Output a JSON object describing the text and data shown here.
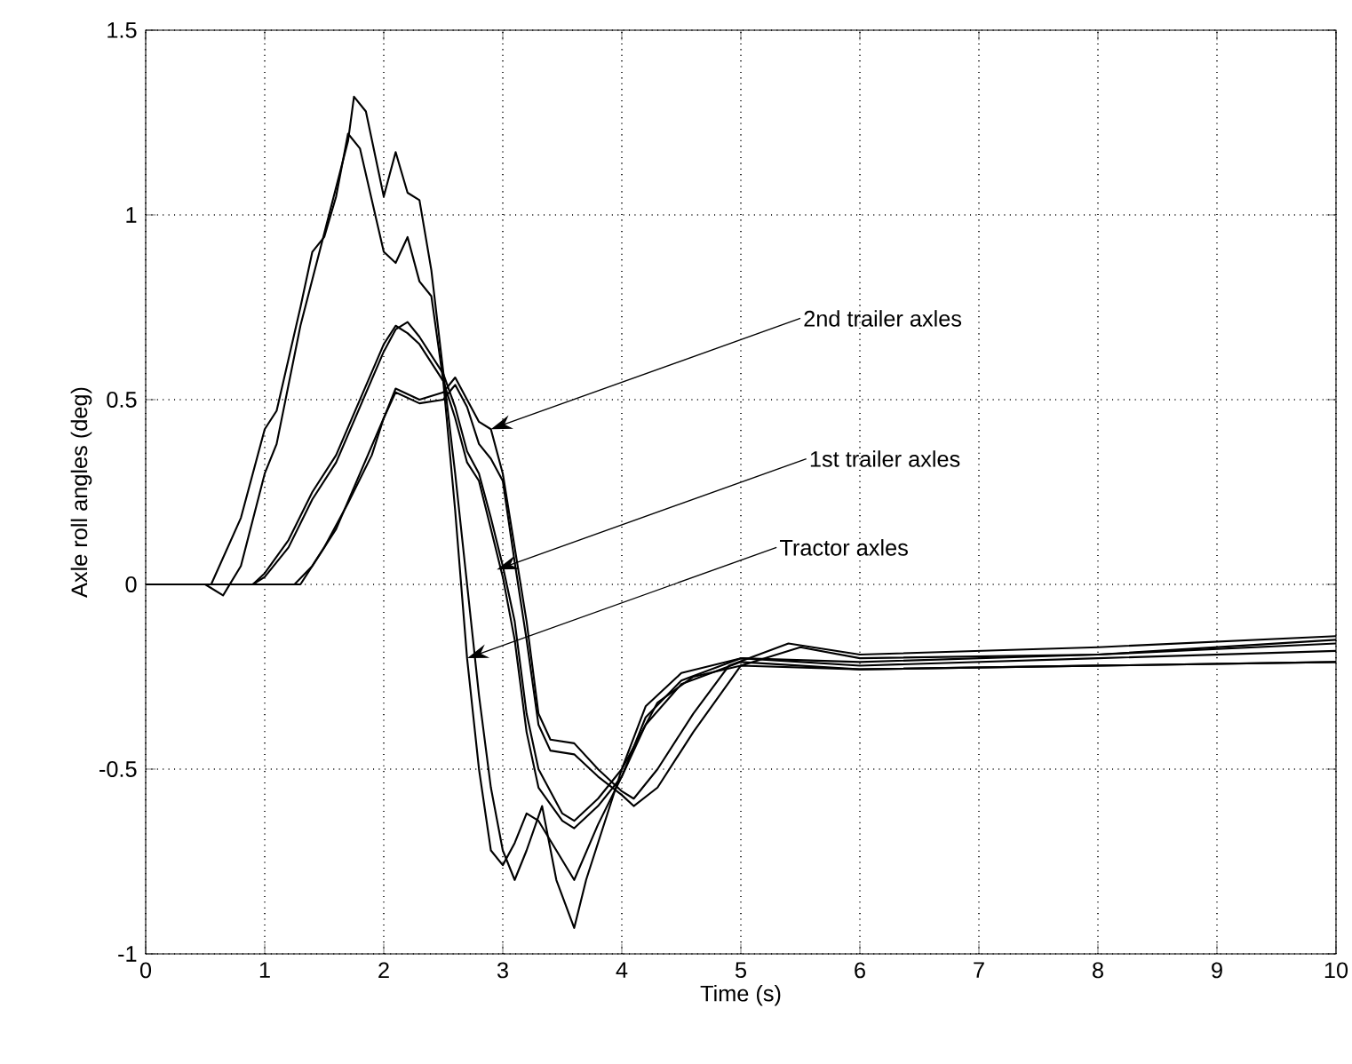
{
  "chart_data": {
    "type": "line",
    "xlabel": "Time (s)",
    "ylabel": "Axle roll angles (deg)",
    "xlim": [
      0,
      10
    ],
    "ylim": [
      -1,
      1.5
    ],
    "xticks": [
      0,
      1,
      2,
      3,
      4,
      5,
      6,
      7,
      8,
      9,
      10
    ],
    "yticks": [
      -1,
      -0.5,
      0,
      0.5,
      1,
      1.5
    ],
    "grid": true,
    "marker": "none",
    "line_style": "solid",
    "series": [
      {
        "color": "#000000",
        "x": [
          0,
          0.55,
          0.8,
          1.0,
          1.1,
          1.3,
          1.4,
          1.5,
          1.6,
          1.7,
          1.8,
          2.0,
          2.1,
          2.2,
          2.3,
          2.4,
          2.5,
          2.6,
          2.7,
          2.8,
          2.9,
          3.0,
          3.1,
          3.2,
          3.3,
          3.45,
          3.6,
          3.8,
          4.0,
          4.2,
          4.5,
          5.0,
          6.0,
          8.0,
          10.0
        ],
        "values": [
          0,
          0,
          0.18,
          0.42,
          0.47,
          0.75,
          0.9,
          0.94,
          1.05,
          1.22,
          1.18,
          0.9,
          0.87,
          0.94,
          0.82,
          0.78,
          0.55,
          0.2,
          -0.2,
          -0.5,
          -0.72,
          -0.76,
          -0.7,
          -0.62,
          -0.64,
          -0.72,
          -0.8,
          -0.65,
          -0.52,
          -0.38,
          -0.27,
          -0.21,
          -0.23,
          -0.22,
          -0.21
        ]
      },
      {
        "color": "#000000",
        "x": [
          0,
          0.5,
          0.65,
          0.8,
          1.0,
          1.1,
          1.3,
          1.5,
          1.7,
          1.75,
          1.85,
          2.0,
          2.1,
          2.2,
          2.3,
          2.4,
          2.6,
          2.8,
          2.9,
          3.0,
          3.1,
          3.2,
          3.33,
          3.45,
          3.6,
          3.7,
          3.85,
          4.0,
          4.3,
          4.6,
          5.0,
          6.0,
          8.0,
          10.0
        ],
        "values": [
          0,
          0,
          -0.03,
          0.05,
          0.3,
          0.38,
          0.7,
          0.95,
          1.2,
          1.32,
          1.28,
          1.05,
          1.17,
          1.06,
          1.04,
          0.85,
          0.3,
          -0.3,
          -0.55,
          -0.72,
          -0.8,
          -0.72,
          -0.6,
          -0.8,
          -0.93,
          -0.8,
          -0.65,
          -0.5,
          -0.32,
          -0.25,
          -0.22,
          -0.23,
          -0.22,
          -0.21
        ]
      },
      {
        "color": "#000000",
        "x": [
          0,
          0.9,
          1.0,
          1.2,
          1.4,
          1.6,
          1.8,
          2.0,
          2.1,
          2.2,
          2.3,
          2.5,
          2.6,
          2.7,
          2.8,
          2.9,
          3.0,
          3.1,
          3.2,
          3.3,
          3.5,
          3.6,
          3.8,
          4.0,
          4.2,
          4.5,
          5.0,
          6.0,
          8.0,
          10.0
        ],
        "values": [
          0,
          0,
          0.03,
          0.12,
          0.25,
          0.35,
          0.5,
          0.65,
          0.7,
          0.68,
          0.65,
          0.55,
          0.45,
          0.33,
          0.28,
          0.15,
          0.02,
          -0.15,
          -0.4,
          -0.55,
          -0.64,
          -0.66,
          -0.6,
          -0.52,
          -0.36,
          -0.26,
          -0.2,
          -0.22,
          -0.2,
          -0.18
        ]
      },
      {
        "color": "#000000",
        "x": [
          0,
          0.9,
          1.0,
          1.2,
          1.4,
          1.6,
          1.8,
          2.0,
          2.1,
          2.2,
          2.3,
          2.5,
          2.6,
          2.7,
          2.8,
          2.9,
          3.0,
          3.1,
          3.2,
          3.3,
          3.5,
          3.6,
          3.8,
          4.0,
          4.2,
          4.5,
          5.0,
          6.0,
          8.0,
          10.0
        ],
        "values": [
          0,
          0,
          0.02,
          0.1,
          0.23,
          0.33,
          0.48,
          0.63,
          0.69,
          0.71,
          0.67,
          0.57,
          0.48,
          0.36,
          0.3,
          0.18,
          0.05,
          -0.1,
          -0.35,
          -0.5,
          -0.62,
          -0.64,
          -0.58,
          -0.5,
          -0.33,
          -0.24,
          -0.2,
          -0.21,
          -0.19,
          -0.16
        ]
      },
      {
        "color": "#000000",
        "x": [
          0,
          1.25,
          1.4,
          1.6,
          1.8,
          2.0,
          2.1,
          2.3,
          2.5,
          2.6,
          2.7,
          2.8,
          2.9,
          3.0,
          3.1,
          3.2,
          3.3,
          3.4,
          3.6,
          3.8,
          4.0,
          4.1,
          4.3,
          4.6,
          4.9,
          5.4,
          6.0,
          8.0,
          10.0
        ],
        "values": [
          0,
          0,
          0.05,
          0.15,
          0.3,
          0.45,
          0.53,
          0.5,
          0.52,
          0.56,
          0.5,
          0.44,
          0.42,
          0.3,
          0.1,
          -0.1,
          -0.35,
          -0.42,
          -0.43,
          -0.5,
          -0.56,
          -0.58,
          -0.5,
          -0.35,
          -0.22,
          -0.16,
          -0.19,
          -0.17,
          -0.14
        ]
      },
      {
        "color": "#000000",
        "x": [
          0,
          1.3,
          1.5,
          1.7,
          1.9,
          2.0,
          2.1,
          2.3,
          2.5,
          2.6,
          2.7,
          2.8,
          2.9,
          3.0,
          3.1,
          3.2,
          3.3,
          3.4,
          3.6,
          3.8,
          4.0,
          4.1,
          4.3,
          4.6,
          5.0,
          5.5,
          6.0,
          8.0,
          10.0
        ],
        "values": [
          0,
          0,
          0.1,
          0.22,
          0.35,
          0.45,
          0.52,
          0.49,
          0.5,
          0.54,
          0.48,
          0.38,
          0.34,
          0.28,
          0.06,
          -0.15,
          -0.38,
          -0.45,
          -0.46,
          -0.52,
          -0.57,
          -0.6,
          -0.55,
          -0.4,
          -0.22,
          -0.17,
          -0.2,
          -0.19,
          -0.15
        ]
      }
    ],
    "annotations": [
      {
        "text": "2nd trailer axles",
        "x": 2.9,
        "y": 0.42
      },
      {
        "text": "1st trailer axles",
        "x": 2.95,
        "y": 0.04
      },
      {
        "text": "Tractor axles",
        "x": 2.7,
        "y": -0.2
      }
    ]
  }
}
